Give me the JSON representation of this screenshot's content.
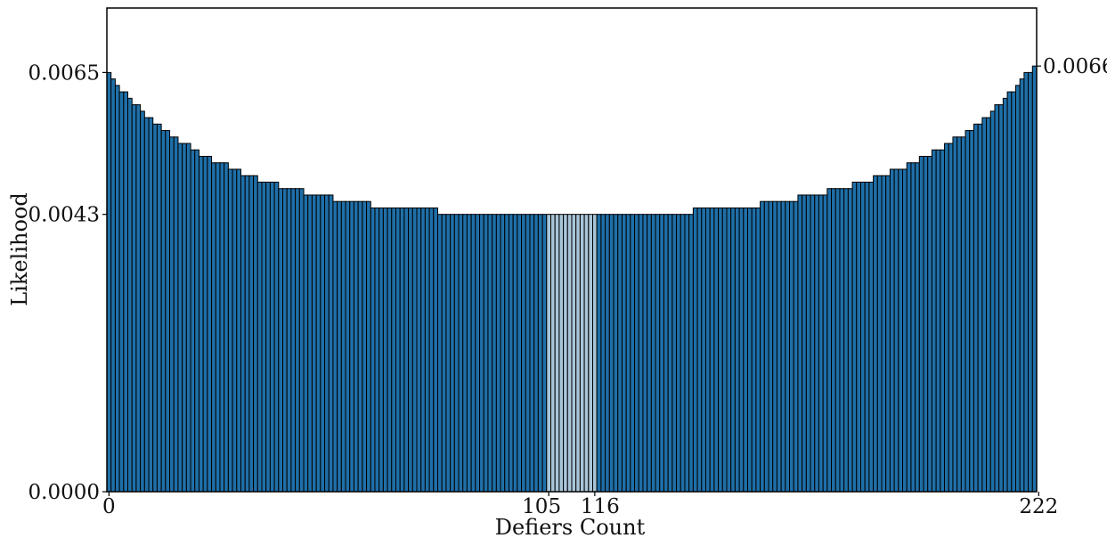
{
  "chart_data": {
    "type": "bar",
    "xlabel": "Defiers Count",
    "ylabel": "Likelihood",
    "x_range": [
      0,
      222
    ],
    "ylim": [
      0,
      0.0075
    ],
    "x_ticks": [
      {
        "value": 0,
        "label": "0"
      },
      {
        "value": 105,
        "label": "105"
      },
      {
        "value": 116,
        "label": "116"
      },
      {
        "value": 222,
        "label": "222"
      }
    ],
    "y_ticks_left": [
      {
        "value": 0.0,
        "label": "0.0000"
      },
      {
        "value": 0.0043,
        "label": "0.0043"
      },
      {
        "value": 0.0065,
        "label": "0.0065"
      }
    ],
    "y_tick_right": {
      "value": 0.0066,
      "label": "0.0066"
    },
    "highlight_range": [
      105,
      116
    ],
    "colors": {
      "bar": "#1f6fa8",
      "bar_highlight": "#a9c6d8",
      "bar_edge": "#000000"
    },
    "grid": false,
    "legend": "none",
    "values": [
      0.0065,
      0.0064,
      0.0063,
      0.0062,
      0.0062,
      0.0061,
      0.006,
      0.006,
      0.0059,
      0.0058,
      0.0058,
      0.0057,
      0.0057,
      0.0056,
      0.0056,
      0.0055,
      0.0055,
      0.0054,
      0.0054,
      0.0054,
      0.0053,
      0.0053,
      0.0052,
      0.0052,
      0.0052,
      0.0051,
      0.0051,
      0.0051,
      0.0051,
      0.005,
      0.005,
      0.005,
      0.0049,
      0.0049,
      0.0049,
      0.0049,
      0.0048,
      0.0048,
      0.0048,
      0.0048,
      0.0048,
      0.0047,
      0.0047,
      0.0047,
      0.0047,
      0.0047,
      0.0047,
      0.0046,
      0.0046,
      0.0046,
      0.0046,
      0.0046,
      0.0046,
      0.0046,
      0.0045,
      0.0045,
      0.0045,
      0.0045,
      0.0045,
      0.0045,
      0.0045,
      0.0045,
      0.0045,
      0.0044,
      0.0044,
      0.0044,
      0.0044,
      0.0044,
      0.0044,
      0.0044,
      0.0044,
      0.0044,
      0.0044,
      0.0044,
      0.0044,
      0.0044,
      0.0044,
      0.0044,
      0.0044,
      0.0043,
      0.0043,
      0.0043,
      0.0043,
      0.0043,
      0.0043,
      0.0043,
      0.0043,
      0.0043,
      0.0043,
      0.0043,
      0.0043,
      0.0043,
      0.0043,
      0.0043,
      0.0043,
      0.0043,
      0.0043,
      0.0043,
      0.0043,
      0.0043,
      0.0043,
      0.0043,
      0.0043,
      0.0043,
      0.0043,
      0.0043,
      0.0043,
      0.0043,
      0.0043,
      0.0043,
      0.0043,
      0.0043,
      0.0043,
      0.0043,
      0.0043,
      0.0043,
      0.0043,
      0.0043,
      0.0043,
      0.0043,
      0.0043,
      0.0043,
      0.0043,
      0.0043,
      0.0043,
      0.0043,
      0.0043,
      0.0043,
      0.0043,
      0.0043,
      0.0043,
      0.0043,
      0.0043,
      0.0043,
      0.0043,
      0.0043,
      0.0043,
      0.0043,
      0.0043,
      0.0043,
      0.0044,
      0.0044,
      0.0044,
      0.0044,
      0.0044,
      0.0044,
      0.0044,
      0.0044,
      0.0044,
      0.0044,
      0.0044,
      0.0044,
      0.0044,
      0.0044,
      0.0044,
      0.0044,
      0.0045,
      0.0045,
      0.0045,
      0.0045,
      0.0045,
      0.0045,
      0.0045,
      0.0045,
      0.0045,
      0.0046,
      0.0046,
      0.0046,
      0.0046,
      0.0046,
      0.0046,
      0.0046,
      0.0047,
      0.0047,
      0.0047,
      0.0047,
      0.0047,
      0.0047,
      0.0048,
      0.0048,
      0.0048,
      0.0048,
      0.0048,
      0.0049,
      0.0049,
      0.0049,
      0.0049,
      0.005,
      0.005,
      0.005,
      0.005,
      0.0051,
      0.0051,
      0.0051,
      0.0052,
      0.0052,
      0.0052,
      0.0053,
      0.0053,
      0.0053,
      0.0054,
      0.0054,
      0.0055,
      0.0055,
      0.0055,
      0.0056,
      0.0056,
      0.0057,
      0.0057,
      0.0058,
      0.0058,
      0.0059,
      0.006,
      0.006,
      0.0061,
      0.0062,
      0.0062,
      0.0063,
      0.0064,
      0.0065,
      0.0065,
      0.0066
    ]
  }
}
